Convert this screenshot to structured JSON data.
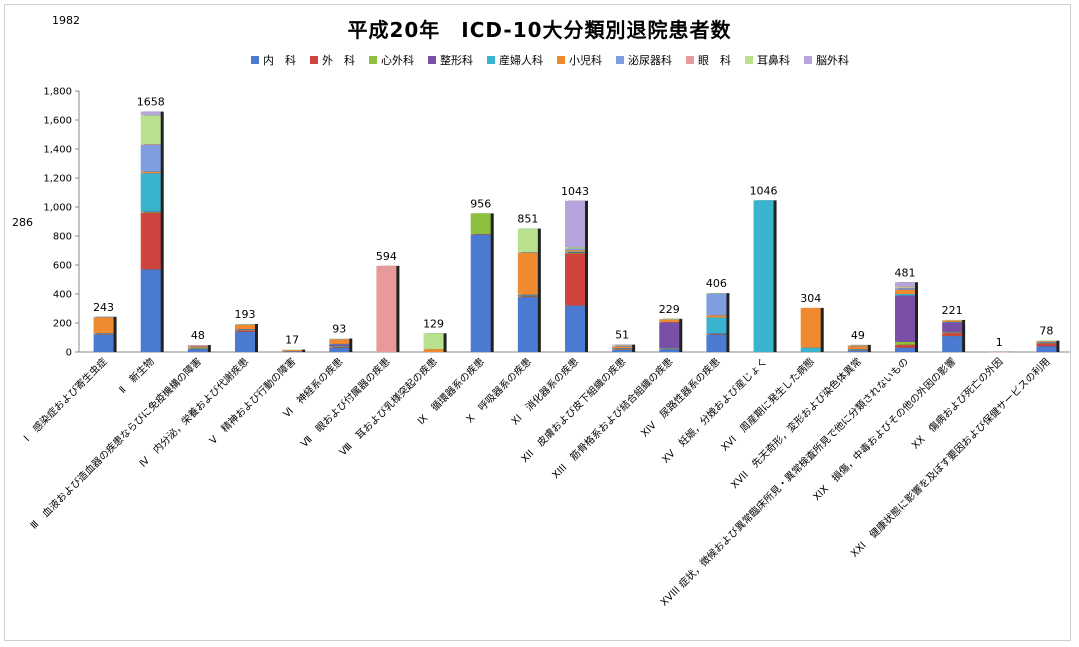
{
  "corner_notes": {
    "top_left": "1982",
    "left_mid": "286"
  },
  "colors": {
    "内科": "#4a7bd0",
    "外科": "#d0443f",
    "心外科": "#8fbf3f",
    "整形科": "#7a4fa8",
    "産婦人科": "#3ab3cf",
    "小児科": "#f08a30",
    "泌尿器科": "#7f9ee0",
    "眼科": "#e89a9a",
    "耳鼻科": "#b9e08c",
    "脳外科": "#b6a4dc"
  },
  "chart_data": {
    "type": "bar",
    "stacked": true,
    "title": "平成20年　ICD-10大分類別退院患者数",
    "legend_position": "top",
    "ylim": [
      0,
      1800
    ],
    "yticks": [
      "0",
      "200",
      "400",
      "600",
      "800",
      "1,000",
      "1,200",
      "1,400",
      "1,600",
      "1,800"
    ],
    "categories": [
      "Ⅰ　感染症および寄生虫症",
      "Ⅱ　新生物",
      "Ⅲ　血液および造血器の疾患ならびに免疫機構の障害",
      "Ⅳ　内分泌，栄養および代謝疾患",
      "Ⅴ　精神および行動の障害",
      "Ⅵ　神経系の疾患",
      "Ⅶ　眼および付属器の疾患",
      "Ⅷ　耳および乳様突起の疾患",
      "Ⅸ　循環器系の疾患",
      "Ⅹ　呼吸器系の疾患",
      "XI　消化器系の疾患",
      "XII　皮膚および皮下組織の疾患",
      "XIII　筋骨格系および結合組織の疾患",
      "XIV　尿路性器系の疾患",
      "XV　妊娠，分娩および産じょく",
      "XVI　周産期に発生した病態",
      "XVII　先天奇形，変形および染色体異常",
      "XVIII 症状，徴候および異常臨床所見・異常検査所見で他に分類されないもの",
      "XIX　損傷，中毒およびその他の外因の影響",
      "XX　傷病および死亡の外因",
      "XXI　健康状態に影響を及ぼす要因および保健サービスの利用"
    ],
    "totals": [
      243,
      1658,
      48,
      193,
      17,
      93,
      594,
      129,
      956,
      851,
      1043,
      51,
      229,
      406,
      1046,
      304,
      49,
      481,
      221,
      1,
      78
    ],
    "series": [
      {
        "name": "内　科",
        "values": [
          120,
          570,
          20,
          140,
          5,
          30,
          0,
          0,
          810,
          380,
          320,
          15,
          20,
          120,
          0,
          0,
          10,
          30,
          110,
          0,
          40
        ]
      },
      {
        "name": "外　科",
        "values": [
          3,
          390,
          3,
          10,
          0,
          3,
          0,
          0,
          3,
          5,
          360,
          3,
          0,
          3,
          0,
          0,
          3,
          20,
          20,
          0,
          20
        ]
      },
      {
        "name": "心外科",
        "values": [
          2,
          5,
          2,
          2,
          0,
          5,
          0,
          0,
          143,
          3,
          5,
          2,
          5,
          3,
          0,
          0,
          2,
          20,
          5,
          0,
          3
        ]
      },
      {
        "name": "整形科",
        "values": [
          2,
          3,
          0,
          3,
          0,
          15,
          0,
          0,
          0,
          2,
          3,
          5,
          180,
          2,
          0,
          0,
          2,
          320,
          70,
          0,
          2
        ]
      },
      {
        "name": "産婦人科",
        "values": [
          3,
          265,
          5,
          3,
          0,
          3,
          0,
          0,
          0,
          5,
          5,
          2,
          0,
          110,
          1046,
          30,
          3,
          10,
          3,
          0,
          3
        ]
      },
      {
        "name": "小児科",
        "values": [
          110,
          10,
          10,
          30,
          10,
          30,
          0,
          20,
          0,
          290,
          10,
          10,
          20,
          15,
          0,
          274,
          20,
          30,
          10,
          0,
          5
        ]
      },
      {
        "name": "泌尿器科",
        "values": [
          3,
          185,
          3,
          3,
          0,
          3,
          0,
          0,
          0,
          3,
          10,
          3,
          2,
          150,
          0,
          0,
          3,
          10,
          0,
          0,
          3
        ]
      },
      {
        "name": "眼　科",
        "values": [
          0,
          5,
          2,
          0,
          0,
          2,
          594,
          0,
          0,
          0,
          0,
          3,
          0,
          0,
          0,
          0,
          3,
          5,
          0,
          1,
          0
        ]
      },
      {
        "name": "耳鼻科",
        "values": [
          0,
          200,
          0,
          2,
          2,
          2,
          0,
          109,
          0,
          163,
          10,
          5,
          2,
          3,
          0,
          0,
          3,
          6,
          3,
          0,
          2
        ]
      },
      {
        "name": "脳外科",
        "values": [
          0,
          25,
          3,
          0,
          0,
          0,
          0,
          0,
          0,
          0,
          320,
          3,
          0,
          0,
          0,
          0,
          0,
          30,
          0,
          0,
          0
        ]
      }
    ]
  }
}
